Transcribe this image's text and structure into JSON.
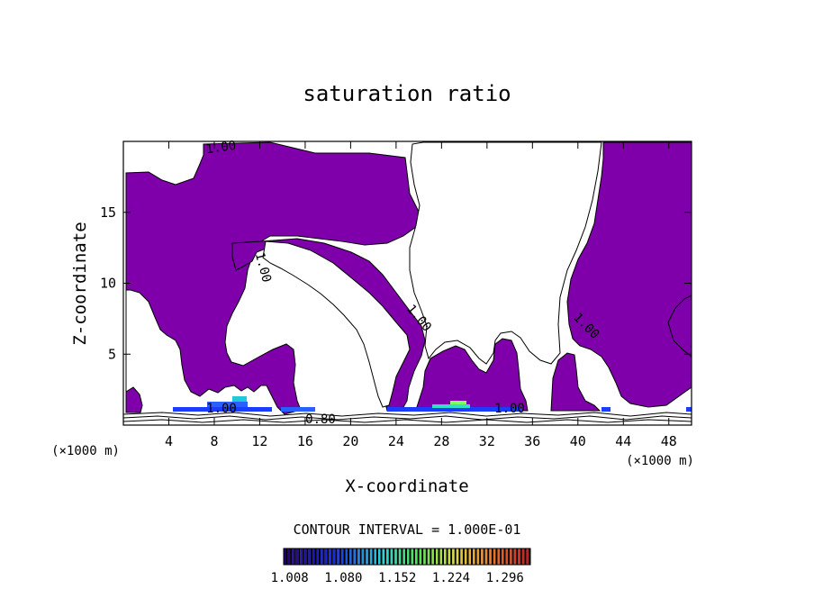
{
  "chart_data": {
    "type": "heatmap",
    "title": "saturation ratio",
    "xlabel": "X-coordinate",
    "ylabel": "Z-coordinate",
    "x_unit_left": "(×1000 m)",
    "x_unit_right": "(×1000 m)",
    "xlim": [
      0,
      50
    ],
    "ylim": [
      0,
      20
    ],
    "x_ticks": [
      "4",
      "8",
      "12",
      "16",
      "20",
      "24",
      "28",
      "32",
      "36",
      "40",
      "44",
      "48"
    ],
    "x_tick_values": [
      4,
      8,
      12,
      16,
      20,
      24,
      28,
      32,
      36,
      40,
      44,
      48
    ],
    "y_ticks": [
      "5",
      "10",
      "15"
    ],
    "y_tick_values": [
      5,
      10,
      15
    ],
    "contour_interval": "CONTOUR INTERVAL = 1.000E-01",
    "contour_labels": [
      "1.00",
      "1.00",
      "1.00",
      "1.00",
      "1.00",
      "1.00",
      "0.80"
    ],
    "colorbar": {
      "labels": [
        "1.008",
        "1.080",
        "1.152",
        "1.224",
        "1.296"
      ],
      "values": [
        1.008,
        1.08,
        1.152,
        1.224,
        1.296
      ],
      "range": [
        1.0,
        1.33
      ]
    },
    "fill_color": "#7f00aa",
    "grid": false
  }
}
